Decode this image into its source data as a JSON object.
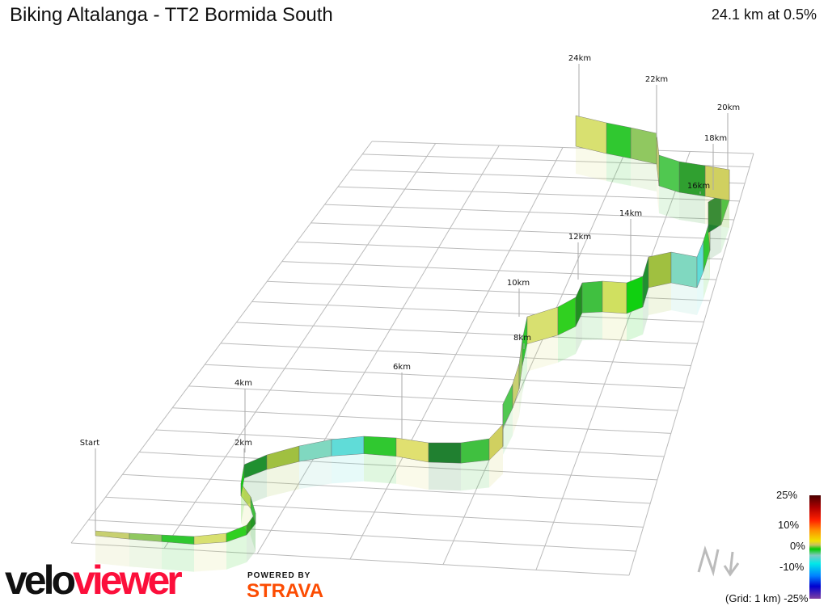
{
  "title": "Biking Altalanga - TT2 Bormida South",
  "summary": "24.1 km at 0.5%",
  "km_labels": [
    "Start",
    "2km",
    "4km",
    "6km",
    "8km",
    "10km",
    "12km",
    "14km",
    "16km",
    "18km",
    "20km",
    "22km",
    "24km"
  ],
  "legend": {
    "max": "25%",
    "p10": "10%",
    "zero": "0%",
    "m10": "-10%",
    "min": "-25%",
    "grid": "(Grid: 1 km)"
  },
  "north_label": "N",
  "branding": {
    "velo": "velo",
    "viewer": "viewer",
    "powered_by": "POWERED BY",
    "strava": "STRAVA"
  },
  "colors": {
    "velo": "#111111",
    "viewer": "#fc0f3b",
    "strava": "#fc4c02"
  }
}
